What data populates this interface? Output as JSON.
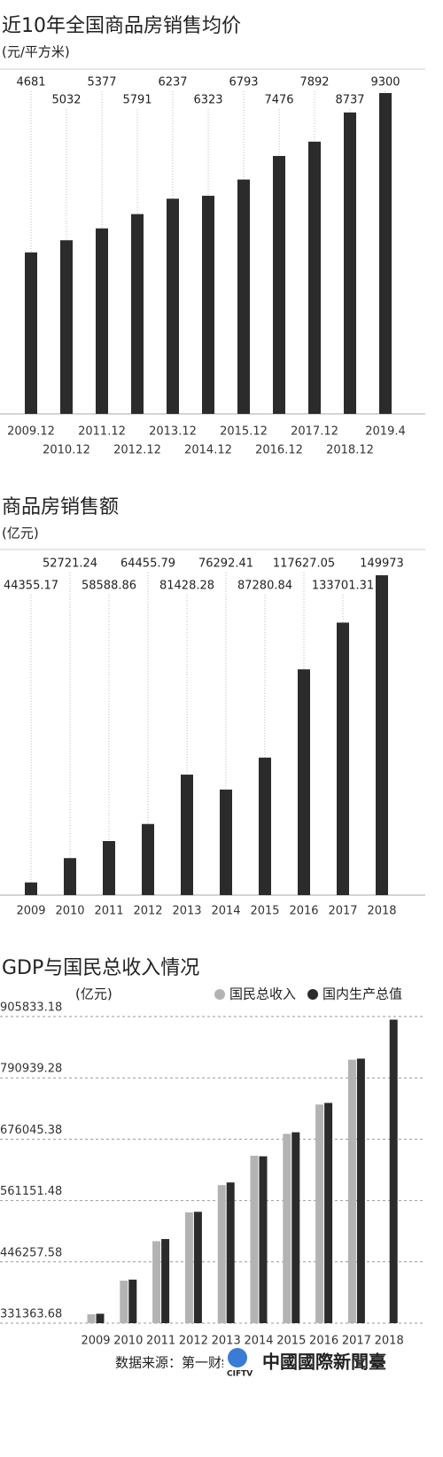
{
  "chart_data": [
    {
      "type": "bar",
      "title": "近10年全国商品房销售均价",
      "subtitle": "(元/平方米)",
      "categories": [
        "2009.12",
        "2010.12",
        "2011.12",
        "2012.12",
        "2013.12",
        "2014.12",
        "2015.12",
        "2016.12",
        "2017.12",
        "2018.12",
        "2019.4"
      ],
      "values": [
        4681,
        5032,
        5377,
        5791,
        6237,
        6323,
        6793,
        7476,
        7892,
        8737,
        9300
      ],
      "color": "#2b2b2b",
      "ylim": [
        0,
        9300
      ]
    },
    {
      "type": "bar",
      "title": "商品房销售额",
      "subtitle": "(亿元)",
      "categories": [
        "2009",
        "2010",
        "2011",
        "2012",
        "2013",
        "2014",
        "2015",
        "2016",
        "2017",
        "2018"
      ],
      "values": [
        44355.17,
        52721.24,
        58588.86,
        64455.79,
        81428.28,
        76292.41,
        87280.84,
        117627.05,
        133701.31,
        149973
      ],
      "color": "#2b2b2b",
      "ylim": [
        40000,
        150000
      ]
    },
    {
      "type": "grouped-bar",
      "title": "GDP与国民总收入情况",
      "subtitle": "(亿元)",
      "categories": [
        "2009",
        "2010",
        "2011",
        "2012",
        "2013",
        "2014",
        "2015",
        "2016",
        "2017",
        "2018"
      ],
      "series": [
        {
          "name": "国民总收入",
          "color": "#b3b3b3",
          "values": [
            348000,
            411000,
            485000,
            539000,
            590000,
            645000,
            686000,
            741000,
            825000,
            null
          ]
        },
        {
          "name": "国内生产总值",
          "color": "#2b2b2b",
          "values": [
            349000,
            413000,
            489000,
            540000,
            595000,
            644000,
            689000,
            744000,
            827000,
            900000
          ]
        }
      ],
      "ylim": [
        331363.68,
        905833.18
      ],
      "yticks": [
        331363.68,
        446257.58,
        561151.48,
        676045.38,
        790939.28,
        905833.18
      ],
      "grid": true,
      "legend": "top-right",
      "source": "数据来源：第一财经根据国家统计局数据整理"
    }
  ]
}
